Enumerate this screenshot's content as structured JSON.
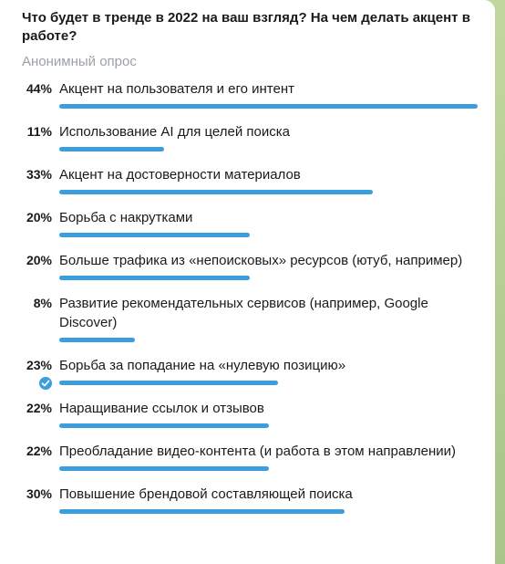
{
  "poll": {
    "question": "Что будет в тренде в 2022 на ваш взгляд? На чем делать акцент в работе?",
    "type_label": "Анонимный опрос",
    "accent_color": "#3a9ede",
    "options": [
      {
        "percent": "44%",
        "value": 44,
        "label": "Акцент на пользователя и его интент",
        "voted": false
      },
      {
        "percent": "11%",
        "value": 11,
        "label": "Использование AI для целей поиска",
        "voted": false
      },
      {
        "percent": "33%",
        "value": 33,
        "label": "Акцент на достоверности материалов",
        "voted": false
      },
      {
        "percent": "20%",
        "value": 20,
        "label": "Борьба с накрутками",
        "voted": false
      },
      {
        "percent": "20%",
        "value": 20,
        "label": "Больше трафика из «непоисковых» ресурсов (ютуб, например)",
        "voted": false
      },
      {
        "percent": "8%",
        "value": 8,
        "label": "Развитие рекомендательных сервисов (например, Google Discover)",
        "voted": false
      },
      {
        "percent": "23%",
        "value": 23,
        "label": "Борьба за попадание на «нулевую позицию»",
        "voted": true
      },
      {
        "percent": "22%",
        "value": 22,
        "label": "Наращивание ссылок и отзывов",
        "voted": false
      },
      {
        "percent": "22%",
        "value": 22,
        "label": "Преобладание видео-контента (и работа в этом направлении)",
        "voted": false
      },
      {
        "percent": "30%",
        "value": 30,
        "label": "Повышение брендовой составляющей поиска",
        "voted": false
      }
    ]
  }
}
